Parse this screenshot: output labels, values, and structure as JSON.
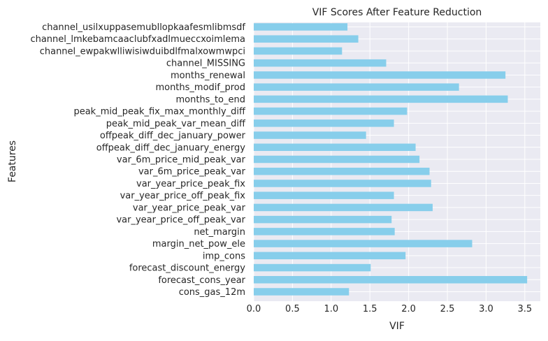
{
  "chart_data": {
    "type": "bar",
    "orientation": "horizontal",
    "title": "VIF Scores After Feature Reduction",
    "xlabel": "VIF",
    "ylabel": "Features",
    "xlim": [
      0,
      3.7
    ],
    "xticks": [
      "0.0",
      "0.5",
      "1.0",
      "1.5",
      "2.0",
      "2.5",
      "3.0",
      "3.5"
    ],
    "grid": true,
    "bar_color": "#87ceeb",
    "background_color": "#eaeaf2",
    "categories": [
      "channel_usilxuppasemubllopkaafesmlibmsdf",
      "channel_lmkebamcaaclubfxadlmueccxoimlema",
      "channel_ewpakwlliwisiwduibdlfmalxowmwpci",
      "channel_MISSING",
      "months_renewal",
      "months_modif_prod",
      "months_to_end",
      "peak_mid_peak_fix_max_monthly_diff",
      "peak_mid_peak_var_mean_diff",
      "offpeak_diff_dec_january_power",
      "offpeak_diff_dec_january_energy",
      "var_6m_price_mid_peak_var",
      "var_6m_price_peak_var",
      "var_year_price_peak_fix",
      "var_year_price_off_peak_fix",
      "var_year_price_peak_var",
      "var_year_price_off_peak_var",
      "net_margin",
      "margin_net_pow_ele",
      "imp_cons",
      "forecast_discount_energy",
      "forecast_cons_year",
      "cons_gas_12m"
    ],
    "values": [
      1.21,
      1.35,
      1.14,
      1.71,
      3.25,
      2.65,
      3.28,
      1.98,
      1.81,
      1.45,
      2.09,
      2.14,
      2.27,
      2.29,
      1.81,
      2.31,
      1.78,
      1.82,
      2.82,
      1.96,
      1.51,
      3.53,
      1.23
    ]
  }
}
